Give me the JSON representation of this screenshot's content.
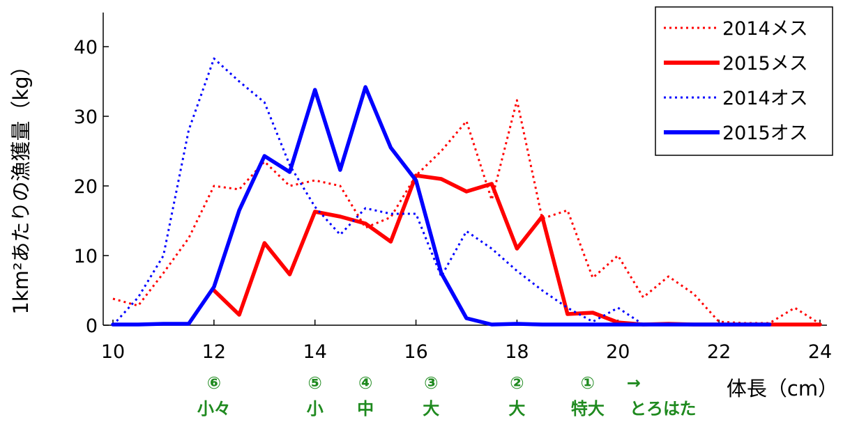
{
  "chart_data": {
    "type": "line",
    "xlabel": "体長（cm）",
    "ylabel": "1km²あたりの漁獲量（kg）",
    "xlim": [
      10,
      24
    ],
    "ylim": [
      0,
      45
    ],
    "x_ticks": [
      "10",
      "12",
      "14",
      "16",
      "18",
      "20",
      "22",
      "24"
    ],
    "y_ticks": [
      "0",
      "10",
      "20",
      "30",
      "40"
    ],
    "legend_position": "top-right",
    "series": [
      {
        "name": "2014メス",
        "color": "#ff0000",
        "style": "dotted",
        "x": [
          10,
          10.5,
          11,
          11.5,
          12,
          12.5,
          13,
          13.5,
          14,
          14.5,
          15,
          15.5,
          16,
          16.5,
          17,
          17.5,
          18,
          18.5,
          19,
          19.5,
          20,
          20.5,
          21,
          21.5,
          22,
          22.5,
          23,
          23.5,
          24
        ],
        "values": [
          3.8,
          2.8,
          7.5,
          12.5,
          20.0,
          19.5,
          23.5,
          20.0,
          20.8,
          20.0,
          14.0,
          15.5,
          21.5,
          25.0,
          29.3,
          18.0,
          32.3,
          15.3,
          16.5,
          6.8,
          10.0,
          4.0,
          7.0,
          4.5,
          0.5,
          0.3,
          0.3,
          2.5,
          0.2
        ]
      },
      {
        "name": "2015メス",
        "color": "#ff0000",
        "style": "solid",
        "x": [
          12,
          12.5,
          13,
          13.5,
          14,
          14.5,
          15,
          15.5,
          16,
          16.5,
          17,
          17.5,
          18,
          18.5,
          19,
          19.5,
          20,
          20.5,
          21,
          21.5,
          22,
          22.5,
          23,
          23.5,
          24
        ],
        "values": [
          5.0,
          1.5,
          11.8,
          7.3,
          16.3,
          15.6,
          14.6,
          12.0,
          21.5,
          21.0,
          19.2,
          20.3,
          11.0,
          15.6,
          1.6,
          1.8,
          0.4,
          0.1,
          0.2,
          0.1,
          0.1,
          0.1,
          0.1,
          0.1,
          0.1
        ]
      },
      {
        "name": "2014オス",
        "color": "#0000ff",
        "style": "dotted",
        "x": [
          10,
          10.5,
          11,
          11.5,
          12,
          12.5,
          13,
          13.5,
          14,
          14.5,
          15,
          15.5,
          16,
          16.5,
          17,
          17.5,
          18,
          18.5,
          19,
          19.5,
          20,
          20.5,
          21
        ],
        "values": [
          0.0,
          4.0,
          10.0,
          28.0,
          38.3,
          35.0,
          32.0,
          23.0,
          17.0,
          13.0,
          16.8,
          16.0,
          16.0,
          7.0,
          13.5,
          11.0,
          7.8,
          5.0,
          2.5,
          0.5,
          2.5,
          0.1,
          0.0
        ]
      },
      {
        "name": "2015オス",
        "color": "#0000ff",
        "style": "solid",
        "x": [
          10,
          10.5,
          11,
          11.5,
          12,
          12.5,
          13,
          13.5,
          14,
          14.5,
          15,
          15.5,
          16,
          16.5,
          17,
          17.5,
          18,
          18.5,
          19,
          19.5,
          20,
          20.5,
          21,
          21.5,
          22,
          22.5,
          23
        ],
        "values": [
          0.1,
          0.1,
          0.2,
          0.2,
          5.5,
          16.5,
          24.3,
          22.0,
          33.8,
          22.3,
          34.2,
          25.5,
          20.8,
          7.5,
          1.0,
          0.1,
          0.2,
          0.1,
          0.1,
          0.1,
          0.1,
          0.1,
          0.1,
          0.1,
          0.1,
          0.1,
          0.1
        ]
      }
    ],
    "grade_labels": [
      {
        "x": 12,
        "mark": "⑥",
        "name": "小々"
      },
      {
        "x": 14,
        "mark": "⑤",
        "name": "小"
      },
      {
        "x": 15,
        "mark": "④",
        "name": "中"
      },
      {
        "x": 16.3,
        "mark": "③",
        "name": "大"
      },
      {
        "x": 18,
        "mark": "②",
        "name": "大"
      },
      {
        "x": 19.4,
        "mark": "①",
        "name": "特大"
      },
      {
        "x": 20.2,
        "mark": "→",
        "name": "とろはた"
      }
    ],
    "grade_color": "#1f8a1f"
  }
}
